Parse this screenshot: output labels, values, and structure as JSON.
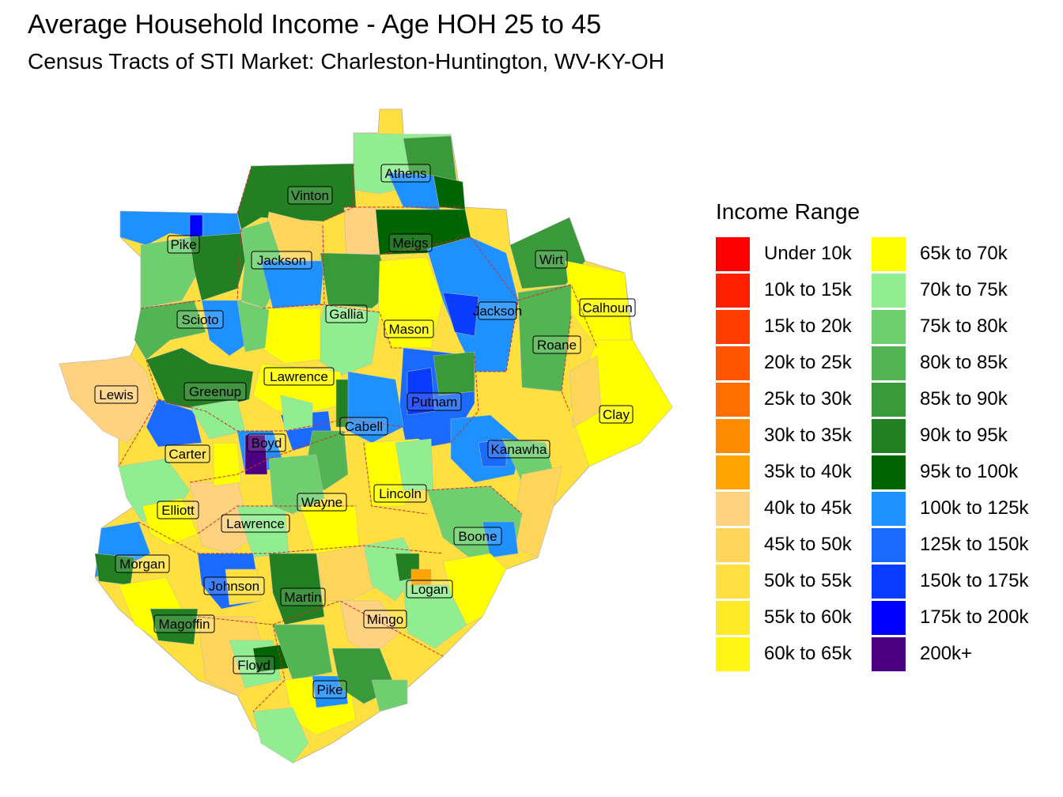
{
  "title": "Average Household Income - Age HOH 25 to 45",
  "subtitle": "Census Tracts of STI Market: Charleston-Huntington, WV-KY-OH",
  "legend": {
    "title": "Income Range",
    "items": [
      {
        "label": "Under 10k",
        "color": "#FF0000"
      },
      {
        "label": "10k to 15k",
        "color": "#FF2000"
      },
      {
        "label": "15k to 20k",
        "color": "#FF3C00"
      },
      {
        "label": "20k to 25k",
        "color": "#FF5500"
      },
      {
        "label": "25k to 30k",
        "color": "#FF6E00"
      },
      {
        "label": "30k to 35k",
        "color": "#FF8C00"
      },
      {
        "label": "35k to 40k",
        "color": "#FFA500"
      },
      {
        "label": "40k to 45k",
        "color": "#FFD27F"
      },
      {
        "label": "45k to 50k",
        "color": "#FFD65A"
      },
      {
        "label": "50k to 55k",
        "color": "#FFE040"
      },
      {
        "label": "55k to 60k",
        "color": "#FFEA2A"
      },
      {
        "label": "60k to 65k",
        "color": "#FFF514"
      },
      {
        "label": "65k to 70k",
        "color": "#FFFF00"
      },
      {
        "label": "70k to 75k",
        "color": "#90EE90"
      },
      {
        "label": "75k to 80k",
        "color": "#6FCF6F"
      },
      {
        "label": "80k to 85k",
        "color": "#52B452"
      },
      {
        "label": "85k to 90k",
        "color": "#3A9A3A"
      },
      {
        "label": "90k to 95k",
        "color": "#228022"
      },
      {
        "label": "95k to 100k",
        "color": "#006400"
      },
      {
        "label": "100k to 125k",
        "color": "#1E90FF"
      },
      {
        "label": "125k to 150k",
        "color": "#1A6AFF"
      },
      {
        "label": "150k to 175k",
        "color": "#0A3CFF"
      },
      {
        "label": "175k to 200k",
        "color": "#0000FF"
      },
      {
        "label": "200k+",
        "color": "#4B0082"
      }
    ]
  },
  "counties": [
    {
      "name": "Athens"
    },
    {
      "name": "Vinton"
    },
    {
      "name": "Pike"
    },
    {
      "name": "Jackson"
    },
    {
      "name": "Meigs"
    },
    {
      "name": "Wirt"
    },
    {
      "name": "Scioto"
    },
    {
      "name": "Gallia"
    },
    {
      "name": "Jackson"
    },
    {
      "name": "Calhoun"
    },
    {
      "name": "Mason"
    },
    {
      "name": "Roane"
    },
    {
      "name": "Lawrence"
    },
    {
      "name": "Lewis"
    },
    {
      "name": "Greenup"
    },
    {
      "name": "Putnam"
    },
    {
      "name": "Clay"
    },
    {
      "name": "Cabell"
    },
    {
      "name": "Boyd"
    },
    {
      "name": "Carter"
    },
    {
      "name": "Kanawha"
    },
    {
      "name": "Wayne"
    },
    {
      "name": "Lincoln"
    },
    {
      "name": "Elliott"
    },
    {
      "name": "Lawrence"
    },
    {
      "name": "Boone"
    },
    {
      "name": "Morgan"
    },
    {
      "name": "Johnson"
    },
    {
      "name": "Martin"
    },
    {
      "name": "Logan"
    },
    {
      "name": "Mingo"
    },
    {
      "name": "Magoffin"
    },
    {
      "name": "Floyd"
    },
    {
      "name": "Pike"
    }
  ]
}
